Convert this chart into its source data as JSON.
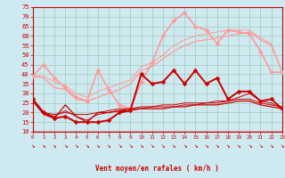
{
  "title": "",
  "xlabel": "Vent moyen/en rafales ( km/h )",
  "xlim": [
    0,
    23
  ],
  "ylim": [
    10,
    75
  ],
  "yticks": [
    10,
    15,
    20,
    25,
    30,
    35,
    40,
    45,
    50,
    55,
    60,
    65,
    70,
    75
  ],
  "xticks": [
    0,
    1,
    2,
    3,
    4,
    5,
    6,
    7,
    8,
    9,
    10,
    11,
    12,
    13,
    14,
    15,
    16,
    17,
    18,
    19,
    20,
    21,
    22,
    23
  ],
  "background_color": "#cee9f0",
  "grid_color": "#a0ccbb",
  "line1_y": [
    27,
    20,
    17,
    18,
    15,
    15,
    15,
    16,
    20,
    21,
    40,
    35,
    36,
    42,
    35,
    42,
    35,
    38,
    27,
    31,
    31,
    26,
    27,
    22
  ],
  "line1_color": "#cc0000",
  "line1_lw": 1.4,
  "line1_marker": "D",
  "line1_ms": 2.5,
  "line2_y": [
    26,
    19,
    17,
    24,
    18,
    15,
    20,
    20,
    21,
    22,
    22,
    22,
    22,
    23,
    23,
    24,
    24,
    24,
    25,
    26,
    26,
    24,
    23,
    22
  ],
  "line2_color": "#cc0000",
  "line2_lw": 0.9,
  "line3_y": [
    26,
    20,
    19,
    20,
    19,
    19,
    20,
    21,
    22,
    22,
    23,
    23,
    24,
    24,
    25,
    25,
    25,
    26,
    26,
    27,
    27,
    25,
    24,
    23
  ],
  "line3_color": "#cc0000",
  "line3_lw": 0.7,
  "line4_y": [
    26,
    20,
    18,
    21,
    18,
    16,
    19,
    20,
    21,
    21,
    22,
    23,
    23,
    23,
    24,
    24,
    25,
    25,
    26,
    28,
    30,
    26,
    25,
    22
  ],
  "line4_color": "#cc0000",
  "line4_lw": 0.7,
  "line5_y": [
    39,
    45,
    38,
    33,
    28,
    26,
    42,
    32,
    24,
    22,
    36,
    46,
    60,
    68,
    72,
    65,
    63,
    56,
    63,
    62,
    61,
    52,
    41,
    41
  ],
  "line5_color": "#ff9999",
  "line5_lw": 1.2,
  "line5_marker": "D",
  "line5_ms": 2.5,
  "line6_y": [
    39,
    38,
    33,
    32,
    27,
    26,
    28,
    30,
    32,
    35,
    42,
    44,
    48,
    52,
    55,
    57,
    58,
    59,
    60,
    61,
    62,
    58,
    55,
    41
  ],
  "line6_color": "#ff9999",
  "line6_lw": 0.9,
  "line7_y": [
    39,
    39,
    36,
    34,
    30,
    28,
    31,
    33,
    35,
    37,
    44,
    46,
    50,
    55,
    58,
    60,
    61,
    62,
    63,
    63,
    63,
    59,
    56,
    41
  ],
  "line7_color": "#ff9999",
  "line7_lw": 0.7,
  "red_line_color": "#cc0000",
  "red_line_lw": 0.8,
  "arrow_char": "↘",
  "arrow_color": "#cc0000",
  "tick_color": "#cc0000",
  "label_color": "#cc0000"
}
